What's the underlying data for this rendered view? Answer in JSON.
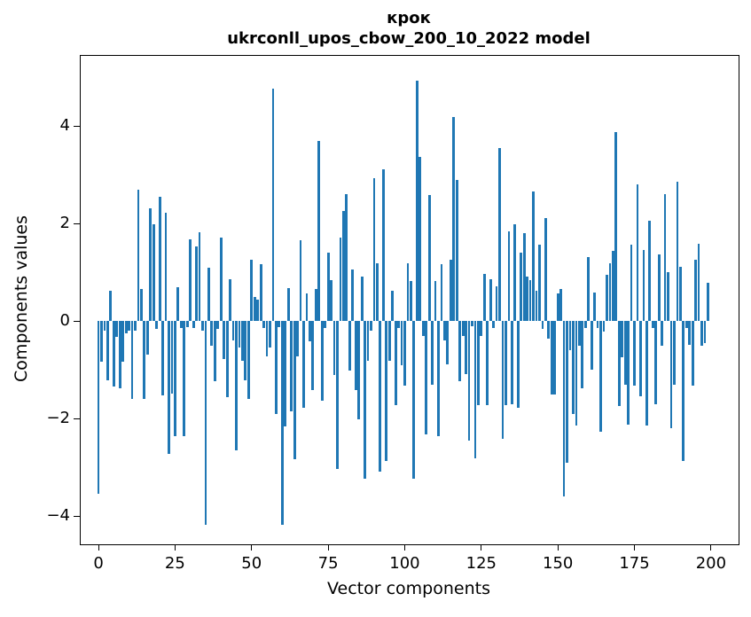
{
  "title": "крок",
  "subtitle": "ukrconll_upos_cbow_200_10_2022 model",
  "chart_data": {
    "type": "bar",
    "title": "крок",
    "subtitle": "ukrconll_upos_cbow_200_10_2022 model",
    "xlabel": "Vector components",
    "ylabel": "Components values",
    "bar_color": "#1f77b4",
    "background_color": "#ffffff",
    "grid": false,
    "legend_position": "none",
    "n_bars": 200,
    "x_start": 0,
    "xlim": [
      -5.8,
      209.0
    ],
    "ylim": [
      -4.58,
      5.44
    ],
    "xticks": [
      0,
      25,
      50,
      75,
      100,
      125,
      150,
      175,
      200
    ],
    "xtick_labels": [
      "0",
      "25",
      "50",
      "75",
      "100",
      "125",
      "150",
      "175",
      "200"
    ],
    "yticks": [
      4,
      2,
      0,
      -2,
      -4
    ],
    "ytick_labels": [
      "4",
      "2",
      "0",
      "−2",
      "−4"
    ],
    "values": [
      -3.54,
      -0.84,
      -0.2,
      -1.21,
      0.63,
      -1.34,
      -0.33,
      -1.38,
      -0.84,
      -0.26,
      -0.2,
      -1.6,
      -0.2,
      2.7,
      0.66,
      -1.6,
      -0.69,
      2.32,
      1.99,
      -0.17,
      2.54,
      -1.53,
      2.23,
      -2.73,
      -1.49,
      -2.36,
      0.69,
      -0.15,
      -2.36,
      -0.12,
      1.67,
      -0.15,
      1.53,
      1.82,
      -0.2,
      -4.18,
      1.09,
      -0.51,
      -1.23,
      -0.17,
      1.71,
      -0.78,
      -1.57,
      0.86,
      -0.39,
      -2.66,
      -0.54,
      -0.81,
      -1.21,
      -1.6,
      1.26,
      0.5,
      0.44,
      1.16,
      -0.15,
      -0.72,
      -0.54,
      4.76,
      -1.9,
      -0.12,
      -4.18,
      -2.17,
      0.67,
      -1.85,
      -2.84,
      -0.72,
      1.65,
      -1.78,
      0.56,
      -0.42,
      -1.42,
      0.65,
      3.69,
      -1.63,
      -0.15,
      1.41,
      0.84,
      -1.11,
      -3.04,
      1.72,
      2.25,
      2.6,
      -1.02,
      1.05,
      -1.41,
      -2.01,
      0.92,
      -3.24,
      -0.81,
      -0.2,
      2.93,
      1.19,
      -3.08,
      3.12,
      -2.87,
      -0.81,
      0.62,
      -1.72,
      -0.15,
      -0.91,
      -1.33,
      1.19,
      0.83,
      -3.24,
      4.94,
      3.37,
      -0.31,
      -2.33,
      2.59,
      -1.3,
      0.83,
      -2.36,
      1.16,
      -0.39,
      -0.88,
      1.26,
      4.18,
      2.9,
      -1.23,
      -0.3,
      -1.08,
      -2.45,
      -0.1,
      -2.81,
      -1.72,
      -0.31,
      0.97,
      -1.72,
      0.86,
      -0.15,
      0.72,
      3.54,
      -2.42,
      -1.72,
      1.84,
      -1.7,
      1.98,
      -1.78,
      1.41,
      1.8,
      0.92,
      0.84,
      2.65,
      0.62,
      1.56,
      -0.17,
      2.11,
      -0.36,
      -1.51,
      -1.51,
      0.56,
      0.66,
      -3.6,
      -2.91,
      -0.6,
      -1.9,
      -2.15,
      -0.51,
      -1.38,
      -0.15,
      1.32,
      -0.99,
      0.59,
      -0.14,
      -2.27,
      -0.21,
      0.94,
      1.19,
      1.44,
      3.87,
      -1.75,
      -0.75,
      -1.3,
      -2.12,
      1.56,
      -1.33,
      2.8,
      -1.54,
      1.45,
      -2.15,
      2.05,
      -0.15,
      -1.7,
      1.36,
      -0.51,
      2.6,
      1.01,
      -2.2,
      -1.3,
      2.85,
      1.11,
      -2.87,
      -0.14,
      -0.48,
      -1.33,
      1.26,
      1.58,
      -0.51,
      -0.45,
      0.78
    ]
  }
}
